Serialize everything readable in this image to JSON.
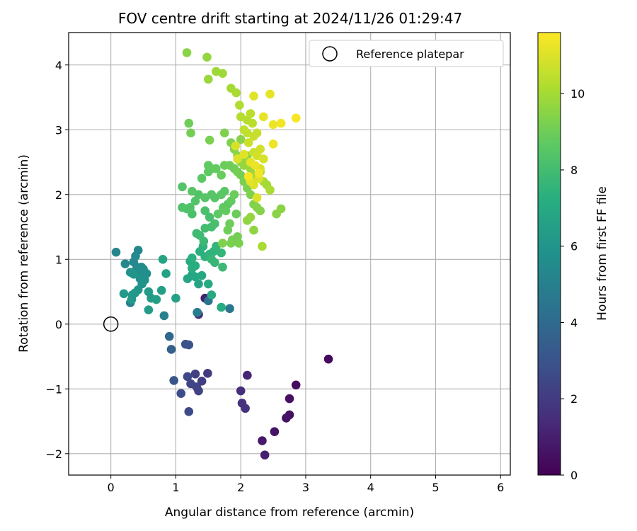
{
  "chart_data": {
    "type": "scatter",
    "title": "FOV centre drift starting at 2024/11/26 01:29:47",
    "xlabel": "Angular distance from reference (arcmin)",
    "ylabel": "Rotation from reference (arcmin)",
    "xlim": [
      -0.65,
      6.15
    ],
    "ylim": [
      -2.33,
      4.5
    ],
    "xticks": [
      0,
      1,
      2,
      3,
      4,
      5,
      6
    ],
    "yticks": [
      -2,
      -1,
      0,
      1,
      2,
      3,
      4
    ],
    "grid": true,
    "legend": {
      "position": "upper-right",
      "entries": [
        "Reference platepar"
      ]
    },
    "reference_point": {
      "label": "Reference platepar",
      "x": 0,
      "y": 0
    },
    "colorbar": {
      "label": "Hours from first FF file",
      "colormap": "viridis",
      "range": [
        0,
        11.6
      ],
      "ticks": [
        0,
        2,
        4,
        6,
        8,
        10
      ]
    },
    "series": [
      {
        "points": [
          [
            3.35,
            -0.54,
            0.3
          ],
          [
            2.85,
            -0.94,
            0.4
          ],
          [
            2.75,
            -1.15,
            0.5
          ],
          [
            2.75,
            -1.4,
            0.5
          ],
          [
            2.7,
            -1.45,
            0.6
          ],
          [
            2.52,
            -1.66,
            0.6
          ],
          [
            2.33,
            -1.8,
            0.8
          ],
          [
            2.37,
            -2.02,
            1.0
          ],
          [
            2.1,
            -0.79,
            1.2
          ],
          [
            2.0,
            -1.03,
            1.5
          ],
          [
            2.02,
            -1.22,
            1.6
          ],
          [
            2.07,
            -1.3,
            1.7
          ],
          [
            1.45,
            0.4,
            1.0
          ],
          [
            1.35,
            0.15,
            1.3
          ],
          [
            1.33,
            0.18,
            2.2
          ],
          [
            1.49,
            -0.76,
            2.0
          ],
          [
            1.4,
            -0.88,
            2.1
          ],
          [
            1.3,
            -0.77,
            2.2
          ],
          [
            1.32,
            -0.97,
            2.3
          ],
          [
            1.35,
            -1.03,
            2.3
          ],
          [
            1.23,
            -0.92,
            2.4
          ],
          [
            1.18,
            -0.81,
            2.5
          ],
          [
            1.2,
            -1.35,
            2.6
          ],
          [
            1.08,
            -1.07,
            2.7
          ],
          [
            1.15,
            -0.31,
            2.9
          ],
          [
            1.2,
            -0.32,
            3.0
          ],
          [
            0.97,
            -0.87,
            3.1
          ],
          [
            0.93,
            -0.39,
            3.6
          ],
          [
            0.9,
            -0.19,
            3.9
          ],
          [
            1.5,
            0.36,
            4.4
          ],
          [
            1.83,
            0.24,
            4.6
          ],
          [
            1.33,
            0.18,
            4.8
          ],
          [
            0.82,
            0.13,
            5.0
          ],
          [
            0.3,
            0.33,
            5.1
          ],
          [
            0.08,
            1.11,
            5.2
          ],
          [
            0.22,
            0.93,
            5.3
          ],
          [
            0.42,
            1.14,
            5.3
          ],
          [
            0.38,
            1.05,
            5.4
          ],
          [
            0.35,
            0.96,
            5.4
          ],
          [
            0.4,
            0.88,
            5.5
          ],
          [
            0.47,
            0.88,
            5.5
          ],
          [
            0.5,
            0.85,
            5.6
          ],
          [
            0.45,
            0.8,
            5.6
          ],
          [
            0.55,
            0.78,
            5.7
          ],
          [
            0.5,
            0.75,
            5.7
          ],
          [
            0.45,
            0.7,
            5.8
          ],
          [
            0.52,
            0.68,
            5.8
          ],
          [
            0.48,
            0.62,
            5.9
          ],
          [
            0.3,
            0.8,
            5.9
          ],
          [
            0.35,
            0.77,
            6.0
          ],
          [
            0.42,
            0.53,
            6.0
          ],
          [
            0.37,
            0.48,
            6.1
          ],
          [
            0.33,
            0.45,
            6.1
          ],
          [
            0.2,
            0.47,
            6.2
          ],
          [
            0.32,
            0.38,
            6.2
          ],
          [
            0.58,
            0.5,
            6.3
          ],
          [
            0.62,
            0.4,
            6.3
          ],
          [
            0.58,
            0.22,
            6.4
          ],
          [
            0.7,
            0.38,
            6.5
          ],
          [
            0.78,
            0.52,
            6.5
          ],
          [
            1.0,
            0.4,
            6.6
          ],
          [
            0.85,
            0.78,
            6.6
          ],
          [
            0.8,
            1.0,
            6.7
          ],
          [
            1.35,
            0.62,
            6.7
          ],
          [
            1.18,
            0.7,
            6.8
          ],
          [
            1.25,
            0.76,
            6.8
          ],
          [
            1.3,
            0.73,
            6.9
          ],
          [
            1.4,
            0.75,
            6.9
          ],
          [
            1.5,
            0.62,
            7.0
          ],
          [
            1.55,
            0.45,
            7.0
          ],
          [
            1.7,
            0.26,
            7.1
          ],
          [
            1.22,
            0.97,
            7.1
          ],
          [
            1.25,
            0.86,
            7.2
          ],
          [
            1.3,
            0.9,
            7.2
          ],
          [
            1.25,
            1.02,
            7.3
          ],
          [
            1.37,
            1.12,
            7.3
          ],
          [
            1.42,
            1.2,
            7.4
          ],
          [
            1.45,
            1.04,
            7.4
          ],
          [
            1.52,
            1.08,
            7.5
          ],
          [
            1.58,
            1.12,
            7.5
          ],
          [
            1.62,
            1.2,
            7.6
          ],
          [
            1.7,
            1.1,
            7.6
          ],
          [
            1.55,
            1.0,
            7.7
          ],
          [
            1.6,
            0.95,
            7.7
          ],
          [
            1.72,
            0.88,
            7.8
          ],
          [
            1.43,
            1.28,
            7.8
          ],
          [
            1.32,
            1.4,
            7.9
          ],
          [
            1.37,
            1.37,
            7.9
          ],
          [
            1.45,
            1.48,
            8.0
          ],
          [
            1.55,
            1.5,
            8.0
          ],
          [
            1.6,
            1.55,
            8.1
          ],
          [
            1.52,
            1.65,
            8.1
          ],
          [
            1.45,
            1.75,
            8.2
          ],
          [
            1.25,
            1.7,
            8.2
          ],
          [
            1.17,
            1.78,
            8.3
          ],
          [
            1.22,
            1.8,
            8.3
          ],
          [
            1.1,
            1.8,
            8.3
          ],
          [
            1.3,
            1.9,
            8.4
          ],
          [
            1.35,
            2.0,
            8.4
          ],
          [
            1.45,
            1.95,
            8.5
          ],
          [
            1.55,
            2.0,
            8.5
          ],
          [
            1.6,
            1.95,
            8.5
          ],
          [
            1.7,
            2.0,
            8.6
          ],
          [
            1.75,
            2.05,
            8.6
          ],
          [
            1.8,
            1.85,
            8.6
          ],
          [
            1.73,
            1.8,
            8.7
          ],
          [
            1.65,
            1.7,
            8.7
          ],
          [
            1.77,
            1.75,
            8.8
          ],
          [
            1.85,
            1.9,
            8.8
          ],
          [
            1.9,
            2.0,
            8.9
          ],
          [
            1.93,
            1.7,
            8.9
          ],
          [
            1.83,
            1.55,
            9.0
          ],
          [
            1.8,
            1.45,
            9.0
          ],
          [
            1.87,
            1.3,
            9.1
          ],
          [
            1.95,
            1.35,
            9.1
          ],
          [
            1.97,
            1.25,
            9.2
          ],
          [
            1.85,
            1.25,
            9.2
          ],
          [
            1.72,
            1.25,
            9.3
          ],
          [
            1.1,
            2.12,
            8.4
          ],
          [
            1.25,
            2.05,
            8.5
          ],
          [
            1.4,
            2.25,
            8.6
          ],
          [
            1.5,
            2.35,
            8.7
          ],
          [
            1.55,
            2.4,
            8.7
          ],
          [
            1.5,
            2.45,
            8.8
          ],
          [
            1.62,
            2.4,
            8.8
          ],
          [
            1.7,
            2.3,
            8.9
          ],
          [
            1.75,
            2.45,
            8.9
          ],
          [
            1.83,
            2.45,
            9.0
          ],
          [
            1.9,
            2.4,
            9.0
          ],
          [
            1.95,
            2.35,
            9.1
          ],
          [
            2.0,
            2.3,
            9.1
          ],
          [
            2.05,
            2.2,
            9.2
          ],
          [
            2.1,
            2.1,
            9.2
          ],
          [
            2.15,
            2.0,
            9.3
          ],
          [
            2.2,
            1.85,
            9.3
          ],
          [
            2.25,
            1.8,
            9.4
          ],
          [
            2.3,
            1.75,
            9.4
          ],
          [
            2.55,
            1.7,
            9.5
          ],
          [
            2.62,
            1.78,
            9.5
          ],
          [
            2.2,
            1.45,
            9.6
          ],
          [
            2.1,
            1.6,
            9.6
          ],
          [
            2.15,
            1.65,
            9.7
          ],
          [
            1.2,
            3.1,
            9.0
          ],
          [
            1.23,
            2.95,
            9.1
          ],
          [
            1.52,
            2.84,
            9.2
          ],
          [
            1.75,
            2.95,
            9.3
          ],
          [
            1.85,
            2.8,
            9.3
          ],
          [
            1.9,
            2.7,
            9.4
          ],
          [
            2.0,
            2.85,
            9.5
          ],
          [
            1.95,
            2.6,
            9.5
          ],
          [
            2.05,
            2.55,
            9.6
          ],
          [
            2.1,
            2.6,
            9.6
          ],
          [
            2.0,
            2.5,
            9.7
          ],
          [
            2.05,
            2.45,
            9.7
          ],
          [
            2.15,
            2.4,
            9.8
          ],
          [
            2.2,
            2.3,
            9.8
          ],
          [
            2.25,
            2.25,
            9.9
          ],
          [
            2.3,
            2.35,
            9.9
          ],
          [
            2.35,
            2.2,
            10.0
          ],
          [
            2.4,
            2.15,
            10.0
          ],
          [
            2.45,
            2.07,
            10.1
          ],
          [
            2.33,
            1.2,
            10.1
          ],
          [
            1.17,
            4.19,
            9.5
          ],
          [
            1.48,
            4.12,
            9.7
          ],
          [
            1.5,
            3.78,
            9.8
          ],
          [
            1.62,
            3.9,
            9.9
          ],
          [
            1.72,
            3.87,
            9.9
          ],
          [
            1.85,
            3.64,
            10.0
          ],
          [
            1.93,
            3.57,
            10.1
          ],
          [
            1.98,
            3.38,
            10.2
          ],
          [
            2.0,
            3.2,
            10.3
          ],
          [
            2.1,
            3.15,
            10.3
          ],
          [
            2.15,
            3.25,
            10.4
          ],
          [
            2.18,
            3.1,
            10.4
          ],
          [
            2.05,
            3.0,
            10.5
          ],
          [
            2.1,
            2.95,
            10.5
          ],
          [
            2.2,
            2.9,
            10.6
          ],
          [
            2.25,
            2.95,
            10.6
          ],
          [
            2.12,
            2.8,
            10.7
          ],
          [
            2.2,
            2.65,
            10.7
          ],
          [
            2.25,
            2.6,
            10.8
          ],
          [
            2.3,
            2.7,
            10.8
          ],
          [
            2.35,
            2.55,
            10.9
          ],
          [
            2.3,
            2.4,
            10.9
          ],
          [
            2.28,
            2.25,
            11.0
          ],
          [
            2.2,
            2.15,
            11.0
          ],
          [
            2.15,
            2.2,
            11.1
          ],
          [
            2.2,
            3.52,
            11.1
          ],
          [
            2.45,
            3.55,
            11.2
          ],
          [
            2.35,
            3.2,
            11.2
          ],
          [
            2.5,
            3.08,
            11.3
          ],
          [
            2.62,
            3.1,
            11.4
          ],
          [
            2.85,
            3.18,
            11.5
          ],
          [
            2.5,
            2.78,
            11.3
          ],
          [
            1.95,
            2.55,
            11.0
          ],
          [
            2.05,
            2.62,
            11.1
          ],
          [
            2.15,
            2.5,
            11.2
          ],
          [
            2.22,
            2.45,
            11.3
          ],
          [
            2.28,
            2.33,
            11.4
          ],
          [
            2.12,
            2.28,
            11.5
          ],
          [
            2.25,
            1.95,
            11.0
          ],
          [
            1.92,
            2.75,
            10.9
          ]
        ]
      }
    ]
  }
}
